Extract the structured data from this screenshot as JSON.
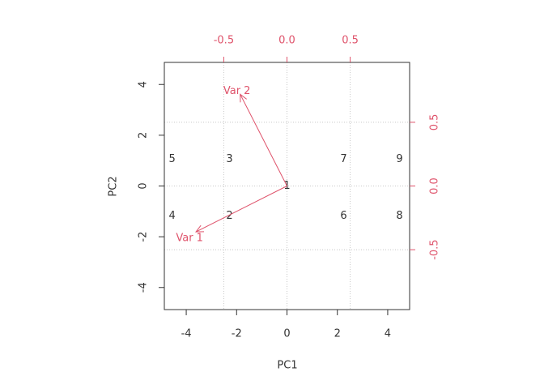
{
  "chart_data": {
    "type": "biplot",
    "xlabel": "PC1",
    "ylabel": "PC2",
    "xlim": [
      -4.87,
      4.87
    ],
    "ylim": [
      -4.87,
      4.87
    ],
    "xticks": [
      -4,
      -2,
      0,
      2,
      4
    ],
    "yticks": [
      -4,
      -2,
      0,
      2,
      4
    ],
    "x2lim": [
      -0.97,
      0.97
    ],
    "y2lim": [
      -0.97,
      0.97
    ],
    "x2ticks": [
      -0.5,
      {
        "value": 0,
        "label": "0.0"
      },
      0.5
    ],
    "y2ticks": [
      -0.5,
      {
        "value": 0,
        "label": "0.0"
      },
      0.5
    ],
    "grid": true,
    "color": "#333333",
    "arrow_color": "#DF536B",
    "points": {
      "labels": [
        "1",
        "2",
        "3",
        "4",
        "5",
        "6",
        "7",
        "8",
        "9"
      ],
      "x": [
        0,
        -2.28,
        -2.28,
        -4.56,
        -4.56,
        2.25,
        2.25,
        4.47,
        4.47
      ],
      "y": [
        0,
        -1.18,
        1.05,
        -1.18,
        1.05,
        -1.18,
        1.05,
        -1.18,
        1.05
      ]
    },
    "arrows": {
      "labels": [
        "Var 1",
        "Var 2"
      ],
      "x": [
        -0.72,
        -0.37
      ],
      "y": [
        -0.36,
        0.72
      ]
    }
  }
}
